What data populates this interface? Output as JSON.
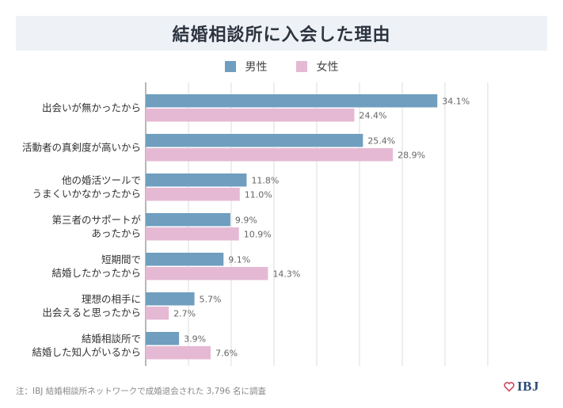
{
  "title": "結婚相談所に入会した理由",
  "legend": {
    "male": "男性",
    "female": "女性"
  },
  "colors": {
    "male": "#6f9ebf",
    "female": "#e5b9d3",
    "grid": "#dddddd",
    "axis": "#888888"
  },
  "footnote": "注：IBJ 結婚相談所ネットワークで成婚退会された 3,796 名に調査",
  "logo": {
    "text": "IBJ",
    "icon": "heart-icon"
  },
  "chart_data": {
    "type": "bar",
    "orientation": "horizontal",
    "title": "結婚相談所に入会した理由",
    "categories": [
      [
        "出会いが無かったから"
      ],
      [
        "活動者の真剣度が高いから"
      ],
      [
        "他の婚活ツールで",
        "うまくいかなかったから"
      ],
      [
        "第三者のサポートが",
        "あったから"
      ],
      [
        "短期間で",
        "結婚したかったから"
      ],
      [
        "理想の相手に",
        "出会えると思ったから"
      ],
      [
        "結婚相談所で",
        "結婚した知人がいるから"
      ]
    ],
    "series": [
      {
        "name": "男性",
        "values": [
          34.1,
          25.4,
          11.8,
          9.9,
          9.1,
          5.7,
          3.9
        ],
        "labels": [
          "34.1%",
          "25.4%",
          "11.8%",
          "9.9%",
          "9.1%",
          "5.7%",
          "3.9%"
        ]
      },
      {
        "name": "女性",
        "values": [
          24.4,
          28.9,
          11.0,
          10.9,
          14.3,
          2.7,
          7.6
        ],
        "labels": [
          "24.4%",
          "28.9%",
          "11.0%",
          "10.9%",
          "14.3%",
          "2.7%",
          "7.6%"
        ]
      }
    ],
    "xlim": [
      0,
      40
    ],
    "grid": true,
    "legend_position": "top-center"
  }
}
